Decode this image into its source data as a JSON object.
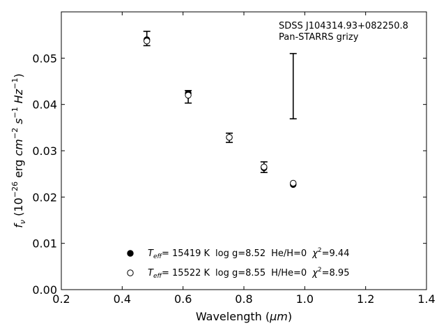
{
  "chart_data": {
    "type": "scatter",
    "xlim": [
      0.2,
      1.4
    ],
    "ylim": [
      0.0,
      0.06
    ],
    "x_ticks": [
      0.2,
      0.4,
      0.6,
      0.8,
      1.0,
      1.2,
      1.4
    ],
    "x_tick_labels": [
      "0.2",
      "0.4",
      "0.6",
      "0.8",
      "1.0",
      "1.2",
      "1.4"
    ],
    "y_ticks": [
      0.0,
      0.01,
      0.02,
      0.03,
      0.04,
      0.05
    ],
    "y_tick_labels": [
      "0.00",
      "0.01",
      "0.02",
      "0.03",
      "0.04",
      "0.05"
    ],
    "xlabel": {
      "main": "Wavelength (",
      "unit": "μm",
      "close": ")"
    },
    "ylabel": {
      "f": "f",
      "nu": "ν",
      "open": " (10",
      "exp1": "−26",
      "erg": " erg ",
      "cm": "cm",
      "exp2": "−2",
      "s": " s",
      "exp3": "−1",
      "hz": " Hz",
      "exp4": "−1",
      "close": ")"
    },
    "annotation": [
      "SDSS J104314.93+082250.8",
      "Pan-STARRS grizy"
    ],
    "observed": {
      "x": [
        0.481,
        0.617,
        0.752,
        0.866,
        0.962
      ],
      "y_top": [
        0.0558,
        0.043,
        0.0338,
        0.0276,
        0.051
      ],
      "y_bottom": [
        0.0527,
        0.0403,
        0.0318,
        0.0253,
        0.0369
      ]
    },
    "series": [
      {
        "marker": "filled",
        "x": [
          0.481,
          0.617,
          0.752,
          0.866,
          0.962
        ],
        "y": [
          0.054,
          0.0424,
          0.0329,
          0.0263,
          0.0227
        ],
        "legend": {
          "teff": "T",
          "teff_sub": "eff",
          "teff_val": "= 15419 K",
          "logg": "log g=8.52",
          "comp": "He/H=0",
          "chi": "χ",
          "chi_sup": "2",
          "chi_val": "=9.44"
        }
      },
      {
        "marker": "open",
        "x": [
          0.481,
          0.617,
          0.752,
          0.866,
          0.962
        ],
        "y": [
          0.0537,
          0.042,
          0.0329,
          0.0265,
          0.023
        ],
        "legend": {
          "teff": "T",
          "teff_sub": "eff",
          "teff_val": "= 15522 K",
          "logg": "log g=8.55",
          "comp": "H/He=0",
          "chi": "χ",
          "chi_sup": "2",
          "chi_val": "=8.95"
        }
      }
    ],
    "legend_position": "lower-center",
    "grid": false
  }
}
